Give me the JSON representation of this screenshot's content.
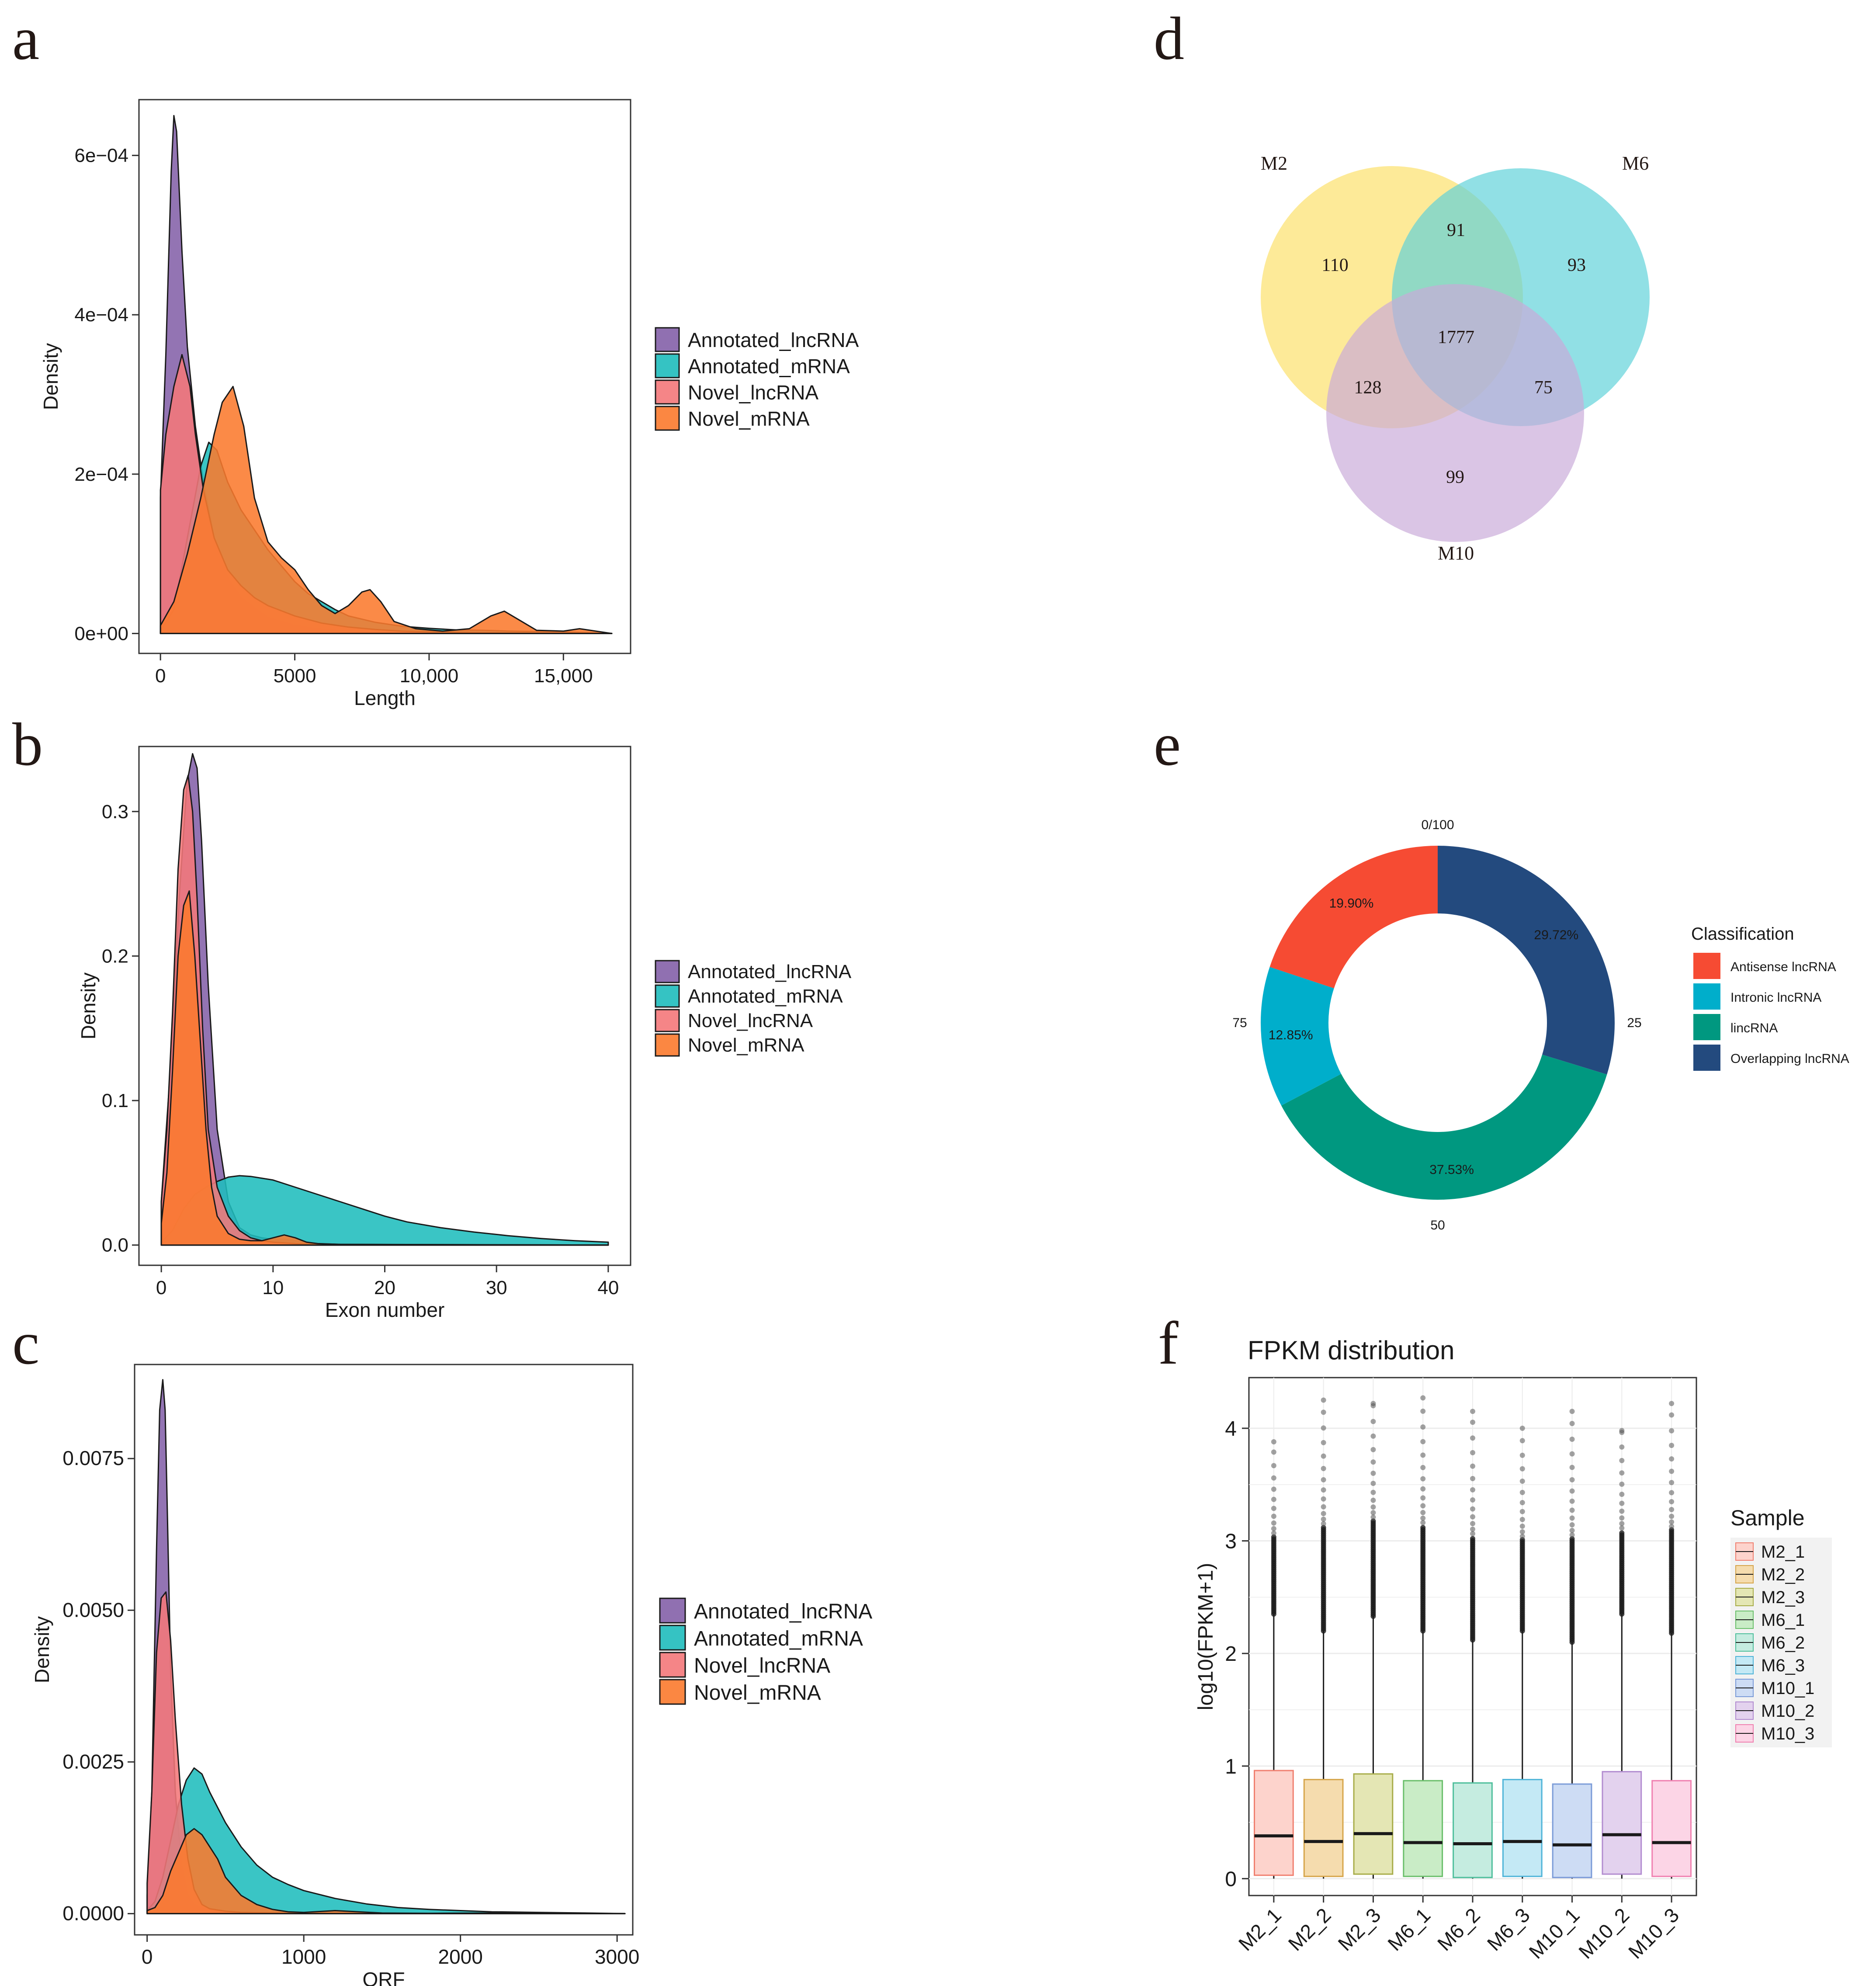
{
  "panel_letters": {
    "a": "a",
    "b": "b",
    "c": "c",
    "d": "d",
    "e": "e",
    "f": "f"
  },
  "colors": {
    "Annotated_lncRNA": "#8461a8",
    "Annotated_mRNA": "#1fbdbd",
    "Novel_lncRNA": "#f4787a",
    "Novel_mRNA": "#fb7a2e"
  },
  "chart_data": [
    {
      "id": "a",
      "type": "area",
      "xlabel": "Length",
      "ylabel": "Density",
      "xlim": [
        -800,
        17500
      ],
      "ylim": [
        -2.5e-05,
        0.00067
      ],
      "xticks": [
        0,
        5000,
        10000,
        15000
      ],
      "xtick_labels": [
        "0",
        "5000",
        "10,000",
        "15,000"
      ],
      "yticks": [
        0,
        0.0002,
        0.0004,
        0.0006
      ],
      "ytick_labels": [
        "0e+00",
        "2e−04",
        "4e−04",
        "6e−04"
      ],
      "legend": [
        "Annotated_lncRNA",
        "Annotated_mRNA",
        "Novel_lncRNA",
        "Novel_mRNA"
      ],
      "series": [
        {
          "name": "Annotated_lncRNA",
          "x": [
            0,
            200,
            400,
            500,
            600,
            800,
            1000,
            1300,
            1600,
            2000,
            2500,
            3000,
            4000,
            5000,
            6000,
            7000,
            8000,
            10000,
            12000,
            14000,
            16800
          ],
          "y": [
            0.00017,
            0.00035,
            0.00058,
            0.00065,
            0.00063,
            0.00048,
            0.00036,
            0.00026,
            0.00019,
            0.00012,
            7e-05,
            4.5e-05,
            2e-05,
            1e-05,
            5e-06,
            3e-06,
            2e-06,
            1e-06,
            5e-07,
            2e-07,
            0
          ]
        },
        {
          "name": "Annotated_mRNA",
          "x": [
            0,
            500,
            1000,
            1500,
            1800,
            2100,
            2500,
            3000,
            3500,
            4000,
            4500,
            5000,
            5500,
            6000,
            6500,
            7000,
            8000,
            9000,
            10000,
            11000,
            12000,
            13000,
            14000,
            15000,
            16800
          ],
          "y": [
            3e-06,
            3e-05,
            0.00012,
            0.00021,
            0.00024,
            0.00023,
            0.00019,
            0.000155,
            0.00013,
            0.000105,
            8.5e-05,
            6.5e-05,
            5e-05,
            4e-05,
            3e-05,
            2.2e-05,
            1.4e-05,
            9e-06,
            6.5e-06,
            4.5e-06,
            4e-06,
            3e-06,
            2.5e-06,
            2e-06,
            0
          ]
        },
        {
          "name": "Novel_lncRNA",
          "x": [
            0,
            200,
            500,
            800,
            1100,
            1300,
            1600,
            2000,
            2500,
            3000,
            3500,
            4000,
            5000,
            6000,
            7000,
            8000,
            9000,
            10000,
            12000,
            14000,
            16800
          ],
          "y": [
            0.00018,
            0.00025,
            0.00031,
            0.00035,
            0.00031,
            0.00025,
            0.00018,
            0.00012,
            8e-05,
            6e-05,
            4.5e-05,
            3.5e-05,
            2.2e-05,
            1.3e-05,
            8e-06,
            5e-06,
            3e-06,
            2e-06,
            1e-06,
            5e-07,
            0
          ]
        },
        {
          "name": "Novel_mRNA",
          "x": [
            0,
            500,
            1000,
            1500,
            2000,
            2300,
            2700,
            3100,
            3500,
            4000,
            4500,
            5000,
            5500,
            6000,
            6500,
            7000,
            7500,
            7800,
            8200,
            8700,
            9500,
            10500,
            11500,
            12300,
            12800,
            13300,
            14000,
            15000,
            15600,
            16800
          ],
          "y": [
            1e-05,
            4e-05,
            0.0001,
            0.00017,
            0.00025,
            0.00029,
            0.00031,
            0.00026,
            0.00017,
            0.000115,
            9.5e-05,
            8e-05,
            5.5e-05,
            3.5e-05,
            2.5e-05,
            3.5e-05,
            5.2e-05,
            5.5e-05,
            4e-05,
            1.5e-05,
            6e-06,
            3e-06,
            6e-06,
            2.2e-05,
            2.8e-05,
            1.8e-05,
            4e-06,
            3e-06,
            6e-06,
            0
          ]
        }
      ]
    },
    {
      "id": "b",
      "type": "area",
      "xlabel": "Exon number",
      "ylabel": "Density",
      "xlim": [
        -2,
        42
      ],
      "ylim": [
        -0.014,
        0.345
      ],
      "xticks": [
        0,
        10,
        20,
        30,
        40
      ],
      "xtick_labels": [
        "0",
        "10",
        "20",
        "30",
        "40"
      ],
      "yticks": [
        0,
        0.1,
        0.2,
        0.3
      ],
      "ytick_labels": [
        "0.0",
        "0.1",
        "0.2",
        "0.3"
      ],
      "legend": [
        "Annotated_lncRNA",
        "Annotated_mRNA",
        "Novel_lncRNA",
        "Novel_mRNA"
      ],
      "series": [
        {
          "name": "Annotated_lncRNA",
          "x": [
            0,
            0.8,
            1.6,
            2.3,
            2.8,
            3.2,
            3.6,
            4.2,
            5,
            6,
            7,
            8,
            9,
            10,
            11,
            12,
            13,
            14,
            16,
            20,
            40
          ],
          "y": [
            0.03,
            0.12,
            0.24,
            0.32,
            0.34,
            0.33,
            0.28,
            0.18,
            0.08,
            0.03,
            0.012,
            0.007,
            0.005,
            0.004,
            0.004,
            0.003,
            0.002,
            0.001,
            0.0005,
            0.0002,
            0
          ]
        },
        {
          "name": "Annotated_mRNA",
          "x": [
            0,
            1,
            2,
            3,
            4,
            5,
            6,
            7,
            8,
            10,
            12,
            14,
            16,
            18,
            20,
            22,
            25,
            28,
            31,
            34,
            37,
            40
          ],
          "y": [
            0.002,
            0.01,
            0.025,
            0.035,
            0.04,
            0.044,
            0.047,
            0.048,
            0.0475,
            0.045,
            0.04,
            0.035,
            0.03,
            0.025,
            0.02,
            0.016,
            0.012,
            0.009,
            0.0065,
            0.0045,
            0.003,
            0.002
          ]
        },
        {
          "name": "Novel_lncRNA",
          "x": [
            0,
            0.5,
            1,
            1.5,
            2,
            2.4,
            2.8,
            3.2,
            3.7,
            4.2,
            5,
            6,
            7,
            8,
            9,
            10,
            12,
            14,
            40
          ],
          "y": [
            0.03,
            0.08,
            0.16,
            0.26,
            0.315,
            0.325,
            0.3,
            0.24,
            0.15,
            0.08,
            0.04,
            0.02,
            0.01,
            0.005,
            0.003,
            0.002,
            0.001,
            0.0005,
            0
          ]
        },
        {
          "name": "Novel_mRNA",
          "x": [
            0,
            0.5,
            1,
            1.5,
            2,
            2.5,
            3,
            3.5,
            4,
            4.5,
            5,
            6,
            7,
            8,
            9,
            10,
            11,
            12,
            13,
            14,
            16,
            40
          ],
          "y": [
            0.015,
            0.05,
            0.12,
            0.2,
            0.235,
            0.245,
            0.2,
            0.14,
            0.08,
            0.04,
            0.02,
            0.008,
            0.004,
            0.003,
            0.003,
            0.005,
            0.007,
            0.005,
            0.002,
            0.001,
            0.0005,
            0
          ]
        }
      ]
    },
    {
      "id": "c",
      "type": "area",
      "xlabel": "ORF",
      "ylabel": "Density",
      "xlim": [
        -80,
        3100
      ],
      "ylim": [
        -0.00035,
        0.00905
      ],
      "xticks": [
        0,
        1000,
        2000,
        3000
      ],
      "xtick_labels": [
        "0",
        "1000",
        "2000",
        "3000"
      ],
      "yticks": [
        0,
        0.0025,
        0.005,
        0.0075
      ],
      "ytick_labels": [
        "0.0000",
        "0.0025",
        "0.0050",
        "0.0075"
      ],
      "legend": [
        "Annotated_lncRNA",
        "Annotated_mRNA",
        "Novel_lncRNA",
        "Novel_mRNA"
      ],
      "series": [
        {
          "name": "Annotated_lncRNA",
          "x": [
            0,
            30,
            60,
            80,
            100,
            115,
            130,
            150,
            180,
            220,
            260,
            300,
            400,
            500,
            700,
            1000,
            3050
          ],
          "y": [
            0.0003,
            0.002,
            0.006,
            0.0083,
            0.0088,
            0.0083,
            0.0065,
            0.004,
            0.002,
            0.0008,
            0.0003,
            0.00015,
            5e-05,
            2e-05,
            1e-05,
            5e-06,
            0
          ]
        },
        {
          "name": "Annotated_mRNA",
          "x": [
            0,
            50,
            100,
            150,
            200,
            250,
            300,
            350,
            400,
            500,
            600,
            700,
            800,
            900,
            1000,
            1200,
            1400,
            1600,
            1800,
            2000,
            2200,
            2500,
            2800,
            3050
          ],
          "y": [
            5e-05,
            0.0002,
            0.0006,
            0.0012,
            0.0018,
            0.0022,
            0.0024,
            0.0023,
            0.002,
            0.0015,
            0.0011,
            0.0008,
            0.0006,
            0.00048,
            0.00038,
            0.00025,
            0.00016,
            0.0001,
            7e-05,
            5e-05,
            3e-05,
            2e-05,
            1e-05,
            0
          ]
        },
        {
          "name": "Novel_lncRNA",
          "x": [
            0,
            30,
            60,
            90,
            120,
            150,
            180,
            220,
            260,
            300,
            350,
            400,
            500,
            600,
            800,
            1000,
            3050
          ],
          "y": [
            0.0005,
            0.002,
            0.0043,
            0.0052,
            0.0053,
            0.0045,
            0.0032,
            0.0018,
            0.0009,
            0.0004,
            0.00015,
            8e-05,
            4e-05,
            2e-05,
            1e-05,
            5e-06,
            0
          ]
        },
        {
          "name": "Novel_mRNA",
          "x": [
            0,
            50,
            100,
            150,
            200,
            250,
            300,
            350,
            400,
            450,
            500,
            600,
            700,
            800,
            900,
            1000,
            1200,
            1500,
            1800,
            2200,
            2500,
            3050
          ],
          "y": [
            5e-05,
            0.0001,
            0.0003,
            0.0007,
            0.001,
            0.0013,
            0.0014,
            0.0013,
            0.0011,
            0.0009,
            0.0006,
            0.0003,
            0.00015,
            7e-05,
            3e-05,
            2e-05,
            5e-05,
            1e-05,
            5e-06,
            1e-05,
            2e-06,
            0
          ]
        }
      ]
    },
    {
      "id": "d",
      "type": "venn",
      "sets": [
        {
          "name": "M2",
          "color": "#fde57e"
        },
        {
          "name": "M6",
          "color": "#5dd2d8"
        },
        {
          "name": "M10",
          "color": "#c9a9d8"
        }
      ],
      "regions": {
        "M2_only": "110",
        "M6_only": "93",
        "M10_only": "99",
        "M2_M6": "91",
        "M2_M10": "128",
        "M6_M10": "75",
        "all": "1777"
      }
    },
    {
      "id": "e",
      "type": "pie",
      "donut": true,
      "legend_title": "Classification",
      "ring_labels": [
        "0/100",
        "25",
        "50",
        "75"
      ],
      "slices": [
        {
          "label": "Overlapping lncRNA",
          "value": 29.72,
          "text": "29.72%",
          "color": "#234a7e"
        },
        {
          "label": "lincRNA",
          "value": 37.53,
          "text": "37.53%",
          "color": "#009880"
        },
        {
          "label": "Intronic lncRNA",
          "value": 12.85,
          "text": "12.85%",
          "color": "#00aecb"
        },
        {
          "label": "Antisense lncRNA",
          "value": 19.9,
          "text": "19.90%",
          "color": "#f64b33"
        }
      ],
      "legend": [
        "Antisense lncRNA",
        "Intronic lncRNA",
        "lincRNA",
        "Overlapping lncRNA"
      ]
    },
    {
      "id": "f",
      "type": "box",
      "title": "FPKM distribution",
      "ylabel": "log10(FPKM+1)",
      "ylim": [
        -0.15,
        4.45
      ],
      "yticks": [
        0,
        1,
        2,
        3,
        4
      ],
      "ytick_labels": [
        "0",
        "1",
        "2",
        "3",
        "4"
      ],
      "legend_title": "Sample",
      "boxes": [
        {
          "name": "M2_1",
          "q1": 0.03,
          "median": 0.38,
          "q3": 0.96,
          "whisker_low": 0,
          "whisker_high": 2.35,
          "outlier_max": 3.88,
          "fill": "#fdd3cc",
          "stroke": "#f08070"
        },
        {
          "name": "M2_2",
          "q1": 0.02,
          "median": 0.33,
          "q3": 0.88,
          "whisker_low": 0,
          "whisker_high": 2.2,
          "outlier_max": 4.25,
          "fill": "#f5dcae",
          "stroke": "#d6a54a"
        },
        {
          "name": "M2_3",
          "q1": 0.04,
          "median": 0.4,
          "q3": 0.93,
          "whisker_low": 0,
          "whisker_high": 2.33,
          "outlier_max": 4.22,
          "fill": "#e4e6b4",
          "stroke": "#a8ad4a"
        },
        {
          "name": "M6_1",
          "q1": 0.02,
          "median": 0.32,
          "q3": 0.87,
          "whisker_low": 0,
          "whisker_high": 2.2,
          "outlier_max": 4.27,
          "fill": "#c9ecc6",
          "stroke": "#6bbf6b"
        },
        {
          "name": "M6_2",
          "q1": 0.01,
          "median": 0.31,
          "q3": 0.85,
          "whisker_low": 0,
          "whisker_high": 2.12,
          "outlier_max": 4.15,
          "fill": "#c5ece0",
          "stroke": "#4fbf9c"
        },
        {
          "name": "M6_3",
          "q1": 0.02,
          "median": 0.33,
          "q3": 0.88,
          "whisker_low": 0,
          "whisker_high": 2.2,
          "outlier_max": 4.0,
          "fill": "#c4e9f5",
          "stroke": "#4fb4d8"
        },
        {
          "name": "M10_1",
          "q1": 0.01,
          "median": 0.3,
          "q3": 0.84,
          "whisker_low": 0,
          "whisker_high": 2.1,
          "outlier_max": 4.15,
          "fill": "#cddcf4",
          "stroke": "#7b9bd8"
        },
        {
          "name": "M10_2",
          "q1": 0.04,
          "median": 0.39,
          "q3": 0.95,
          "whisker_low": 0,
          "whisker_high": 2.35,
          "outlier_max": 3.98,
          "fill": "#e3d2ee",
          "stroke": "#b28cd0"
        },
        {
          "name": "M10_3",
          "q1": 0.02,
          "median": 0.32,
          "q3": 0.87,
          "whisker_low": 0,
          "whisker_high": 2.18,
          "outlier_max": 4.22,
          "fill": "#fcd5e6",
          "stroke": "#f080b0"
        }
      ]
    }
  ]
}
